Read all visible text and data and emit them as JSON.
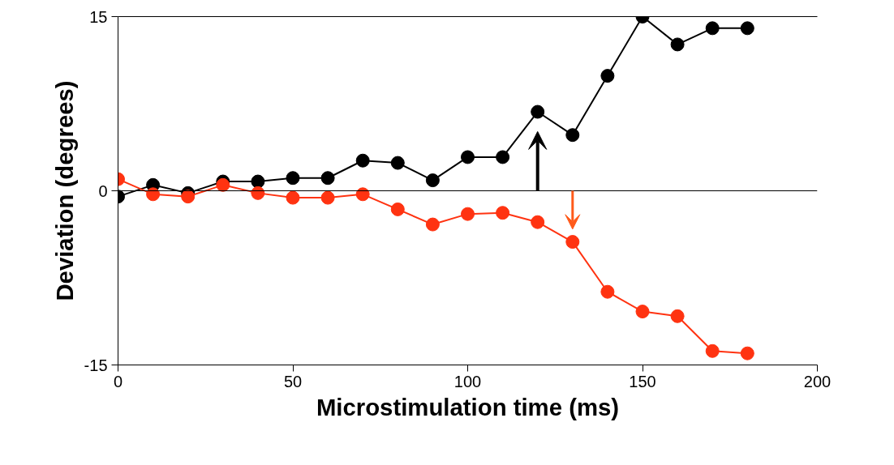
{
  "chart_data": {
    "type": "line",
    "xlabel": "Microstimulation time (ms)",
    "ylabel": "Deviation (degrees)",
    "x": [
      0,
      10,
      20,
      30,
      40,
      50,
      60,
      70,
      80,
      90,
      100,
      110,
      120,
      130,
      140,
      150,
      160,
      170,
      180
    ],
    "series": [
      {
        "color": "#000000",
        "values": [
          -0.5,
          0.5,
          -0.2,
          0.8,
          0.8,
          1.1,
          1.1,
          2.6,
          2.4,
          0.9,
          2.9,
          2.9,
          6.8,
          4.8,
          9.9,
          15,
          12.6,
          14,
          14
        ]
      },
      {
        "color": "#ff3311",
        "values": [
          1.0,
          -0.3,
          -0.5,
          0.5,
          -0.2,
          -0.6,
          -0.6,
          -0.3,
          -1.6,
          -2.9,
          -2.0,
          -1.9,
          -2.7,
          -4.4,
          -8.7,
          -10.4,
          -10.8,
          -13.8,
          -14.0
        ]
      }
    ],
    "xlim": [
      0,
      200
    ],
    "ylim": [
      -15,
      15
    ],
    "xticks": [
      0,
      50,
      100,
      150,
      200
    ],
    "yticks": [
      -15,
      0,
      15
    ],
    "ref_lines": [
      {
        "axis": "y",
        "value": 0,
        "color": "#000000"
      }
    ],
    "marker": "circle",
    "line_style": "solid",
    "grid": false
  }
}
